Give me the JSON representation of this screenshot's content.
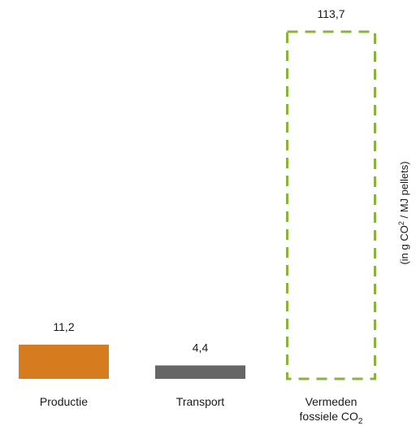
{
  "chart_data": {
    "type": "bar",
    "categories": [
      "Productie",
      "Transport",
      "Vermeden fossiele CO2"
    ],
    "category_lines": [
      [
        "Productie"
      ],
      [
        "Transport"
      ],
      [
        "Vermeden",
        "fossiele CO2"
      ]
    ],
    "values": [
      11.2,
      4.4,
      113.7
    ],
    "value_labels": [
      "11,2",
      "4,4",
      "113,7"
    ],
    "bar_styles": [
      "solid",
      "solid",
      "dashed-outline"
    ],
    "colors": [
      "#d67c1e",
      "#666666",
      "#8ab33c"
    ],
    "ylabel": "(in g CO2 / MJ pellets)",
    "ylim": [
      0,
      113.7
    ],
    "grid": false,
    "legend": "none"
  }
}
